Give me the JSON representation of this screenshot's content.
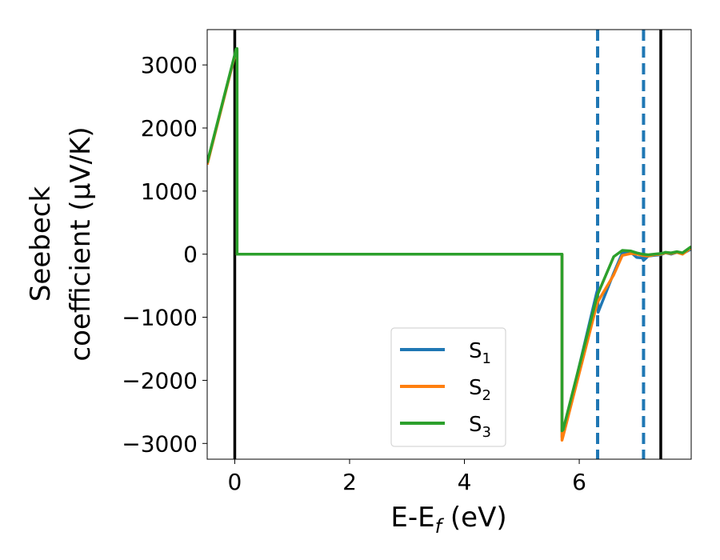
{
  "chart_data": {
    "type": "line",
    "xlabel": "E-E",
    "xlabel_sub": "f",
    "xlabel_unit": " (eV)",
    "ylabel_line1": "Seebeck",
    "ylabel_line2": "coefficient  (μV/K)",
    "xlim": [
      -0.48,
      7.95
    ],
    "ylim": [
      -3250,
      3560
    ],
    "x_ticks": [
      0,
      2,
      4,
      6
    ],
    "x_tick_labels": [
      "0",
      "2",
      "4",
      "6"
    ],
    "y_ticks": [
      3000,
      2000,
      1000,
      0,
      -1000,
      -2000,
      -3000
    ],
    "y_tick_labels": [
      "3000",
      "2000",
      "1000",
      "0",
      "−1000",
      "−2000",
      "−3000"
    ],
    "grid": false,
    "legend_position": "lower-center",
    "vertical_lines": [
      {
        "x": 0.0,
        "style": "solid",
        "color": "#000000"
      },
      {
        "x": 7.42,
        "style": "solid",
        "color": "#000000"
      },
      {
        "x": 6.32,
        "style": "dashed",
        "color": "#1f77b4"
      },
      {
        "x": 7.12,
        "style": "dashed",
        "color": "#1f77b4"
      }
    ],
    "series": [
      {
        "name": "S",
        "sub": "1",
        "color": "#1f77b4",
        "x": [
          -0.48,
          0.0,
          0.02,
          0.04,
          0.04,
          5.7,
          5.7,
          5.72,
          6.3,
          6.32,
          6.33,
          6.6,
          6.75,
          6.9,
          7.0,
          7.1,
          7.12,
          7.2,
          7.3,
          7.42,
          7.5,
          7.6,
          7.7,
          7.8,
          7.95
        ],
        "y": [
          1430,
          3150,
          3230,
          3240,
          0,
          0,
          -2900,
          -2850,
          -620,
          -560,
          -920,
          -300,
          20,
          30,
          -50,
          -60,
          -100,
          -30,
          -20,
          -10,
          20,
          0,
          30,
          10,
          80
        ]
      },
      {
        "name": "S",
        "sub": "2",
        "color": "#ff7f0e",
        "x": [
          -0.48,
          0.0,
          0.02,
          0.04,
          0.04,
          5.7,
          5.7,
          5.72,
          6.3,
          6.32,
          6.6,
          6.75,
          6.9,
          7.0,
          7.1,
          7.2,
          7.3,
          7.42,
          7.5,
          7.6,
          7.7,
          7.8,
          7.95
        ],
        "y": [
          1420,
          3140,
          3225,
          3235,
          0,
          0,
          -2950,
          -2880,
          -820,
          -760,
          -330,
          -20,
          10,
          0,
          -20,
          -30,
          -10,
          0,
          20,
          10,
          30,
          0,
          100
        ]
      },
      {
        "name": "S",
        "sub": "3",
        "color": "#2ca02c",
        "x": [
          -0.48,
          0.0,
          0.02,
          0.04,
          0.04,
          5.7,
          5.7,
          5.72,
          6.3,
          6.32,
          6.6,
          6.75,
          6.9,
          7.0,
          7.1,
          7.2,
          7.3,
          7.42,
          7.5,
          7.6,
          7.7,
          7.8,
          7.95
        ],
        "y": [
          1450,
          3160,
          3250,
          3260,
          0,
          0,
          -2800,
          -2780,
          -700,
          -640,
          -40,
          60,
          50,
          20,
          0,
          -10,
          0,
          10,
          30,
          20,
          40,
          20,
          120
        ]
      }
    ]
  }
}
